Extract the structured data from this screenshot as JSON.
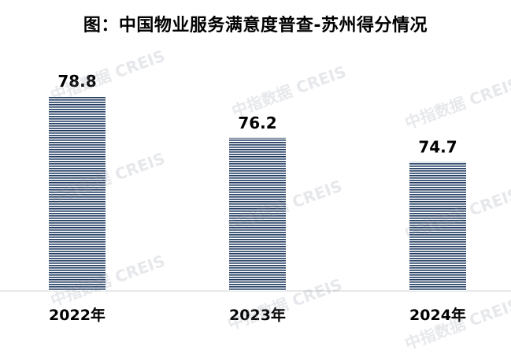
{
  "chart_data": {
    "type": "bar",
    "title": "图：中国物业服务满意度普查-苏州得分情况",
    "categories": [
      "2022年",
      "2023年",
      "2024年"
    ],
    "values": [
      78.8,
      76.2,
      74.7
    ],
    "data_labels": [
      "78.8",
      "76.2",
      "74.7"
    ],
    "xlabel": "",
    "ylabel": "",
    "bar_color": "#1f3a5f",
    "grid": false,
    "legend": "none"
  },
  "watermark": "中指数据 CREIS"
}
